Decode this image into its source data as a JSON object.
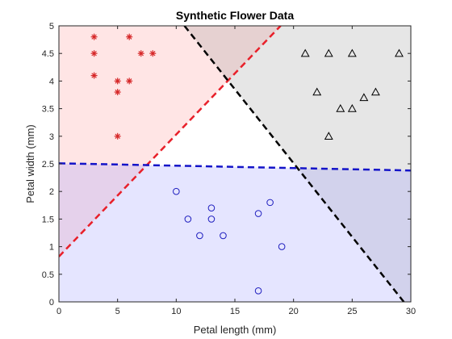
{
  "chart_data": {
    "type": "scatter",
    "title": "Synthetic Flower Data",
    "xlabel": "Petal length (mm)",
    "ylabel": "Petal width (mm)",
    "xlim": [
      0,
      30
    ],
    "ylim": [
      0,
      5
    ],
    "xticks": [
      "0",
      "5",
      "10",
      "15",
      "20",
      "25",
      "30"
    ],
    "yticks": [
      "0",
      "0.5",
      "1",
      "1.5",
      "2",
      "2.5",
      "3",
      "3.5",
      "4",
      "4.5",
      "5"
    ],
    "grid": false,
    "series": [
      {
        "marker": "asterisk",
        "color": "#d62728",
        "points": [
          [
            3,
            4.8
          ],
          [
            3,
            4.5
          ],
          [
            3,
            4.1
          ],
          [
            5,
            4.0
          ],
          [
            5,
            3.8
          ],
          [
            5,
            3.0
          ],
          [
            6,
            4.8
          ],
          [
            6,
            4.0
          ],
          [
            7,
            4.5
          ],
          [
            8,
            4.5
          ]
        ]
      },
      {
        "marker": "triangle",
        "color": "#000000",
        "points": [
          [
            21,
            4.5
          ],
          [
            22,
            3.8
          ],
          [
            23,
            4.5
          ],
          [
            23,
            3.0
          ],
          [
            24,
            3.5
          ],
          [
            25,
            4.5
          ],
          [
            25,
            3.5
          ],
          [
            26,
            3.7
          ],
          [
            27,
            3.8
          ],
          [
            29,
            4.5
          ]
        ]
      },
      {
        "marker": "circle",
        "color": "#1f1fbf",
        "points": [
          [
            10,
            2.0
          ],
          [
            11,
            1.5
          ],
          [
            12,
            1.2
          ],
          [
            13,
            1.7
          ],
          [
            13,
            1.5
          ],
          [
            14,
            1.2
          ],
          [
            17,
            1.6
          ],
          [
            17,
            0.2
          ],
          [
            18,
            1.8
          ],
          [
            19,
            1.0
          ]
        ]
      }
    ],
    "boundaries": [
      {
        "color": "#e8202a",
        "style": "dashed",
        "from": [
          0,
          0.82
        ],
        "to": [
          18.9,
          5.0
        ]
      },
      {
        "color": "#000000",
        "style": "dashed",
        "from": [
          10.7,
          5.0
        ],
        "to": [
          29.4,
          0.0
        ]
      },
      {
        "color": "#1414c8",
        "style": "dashed",
        "from": [
          0,
          2.51
        ],
        "to": [
          30,
          2.38
        ]
      }
    ],
    "regions": [
      {
        "color": "#ff9999",
        "opacity": 0.25,
        "polygon": [
          [
            0,
            0.82
          ],
          [
            18.9,
            5.0
          ],
          [
            0,
            5.0
          ]
        ]
      },
      {
        "color": "#8c8c8c",
        "opacity": 0.22,
        "polygon": [
          [
            10.7,
            5.0
          ],
          [
            30,
            5.0
          ],
          [
            30,
            0.0
          ],
          [
            29.4,
            0.0
          ]
        ]
      },
      {
        "color": "#9999ff",
        "opacity": 0.25,
        "polygon": [
          [
            0,
            2.51
          ],
          [
            30,
            2.38
          ],
          [
            30,
            0.0
          ],
          [
            0,
            0.0
          ]
        ]
      }
    ]
  }
}
